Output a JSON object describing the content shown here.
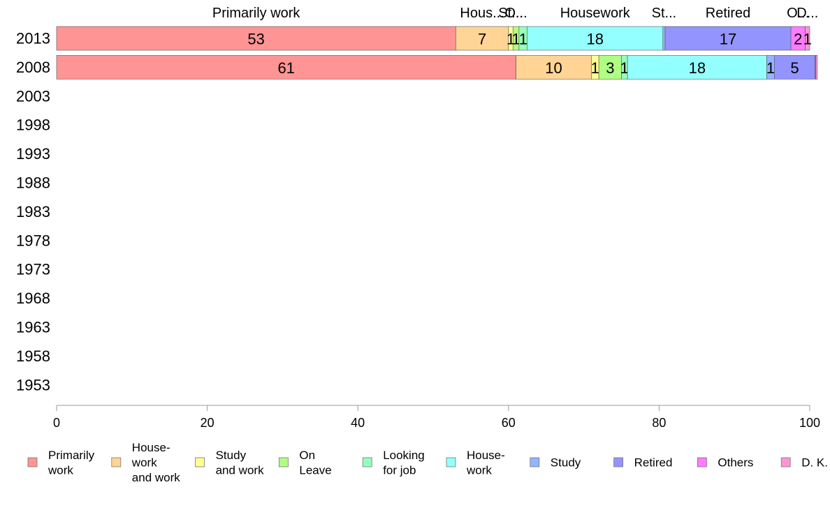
{
  "chart_data": {
    "type": "bar",
    "orientation": "horizontal",
    "stacked": true,
    "title": "",
    "xlabel": "",
    "ylabel": "",
    "xlim": [
      0,
      100
    ],
    "x_ticks": [
      0,
      20,
      40,
      60,
      80,
      100
    ],
    "categories": [
      "2013",
      "2008",
      "2003",
      "1998",
      "1993",
      "1988",
      "1983",
      "1978",
      "1973",
      "1968",
      "1963",
      "1958",
      "1953"
    ],
    "top_labels": [
      {
        "series": 0,
        "text": "Primarily work"
      },
      {
        "series": 1,
        "text": "Hous..."
      },
      {
        "series": 2,
        "text": "St..."
      },
      {
        "series": 3,
        "text": "O..."
      },
      {
        "series": 5,
        "text": "Housework"
      },
      {
        "series": 6,
        "text": "St..."
      },
      {
        "series": 7,
        "text": "Retired"
      },
      {
        "series": 8,
        "text": "O..."
      },
      {
        "series": 9,
        "text": "D..."
      }
    ],
    "series": [
      {
        "name": "Primarily work",
        "color": "#ff9494",
        "values": [
          53,
          61,
          null,
          null,
          null,
          null,
          null,
          null,
          null,
          null,
          null,
          null,
          null
        ],
        "labels": [
          "53",
          "61"
        ]
      },
      {
        "name": "House- work and work",
        "color": "#ffd494",
        "values": [
          7,
          10,
          null,
          null,
          null,
          null,
          null,
          null,
          null,
          null,
          null,
          null,
          null
        ],
        "labels": [
          "7",
          "10"
        ]
      },
      {
        "name": "Study and work",
        "color": "#ffff94",
        "values": [
          0.6,
          1,
          null,
          null,
          null,
          null,
          null,
          null,
          null,
          null,
          null,
          null,
          null
        ],
        "labels": [
          "1",
          "1"
        ]
      },
      {
        "name": "On Leave",
        "color": "#b0ff84",
        "values": [
          0.8,
          3,
          null,
          null,
          null,
          null,
          null,
          null,
          null,
          null,
          null,
          null,
          null
        ],
        "labels": [
          "1",
          "3"
        ]
      },
      {
        "name": "Looking for job",
        "color": "#94ffbe",
        "values": [
          1.1,
          0.8,
          null,
          null,
          null,
          null,
          null,
          null,
          null,
          null,
          null,
          null,
          null
        ],
        "labels": [
          "1",
          "1"
        ]
      },
      {
        "name": "House- work",
        "color": "#94ffff",
        "values": [
          18,
          18.5,
          null,
          null,
          null,
          null,
          null,
          null,
          null,
          null,
          null,
          null,
          null
        ],
        "labels": [
          "18",
          "18"
        ]
      },
      {
        "name": "Study",
        "color": "#94b4ff",
        "values": [
          0.3,
          1,
          null,
          null,
          null,
          null,
          null,
          null,
          null,
          null,
          null,
          null,
          null
        ],
        "labels": [
          "",
          "1"
        ]
      },
      {
        "name": "Retired",
        "color": "#9494ff",
        "values": [
          16.7,
          5.4,
          null,
          null,
          null,
          null,
          null,
          null,
          null,
          null,
          null,
          null,
          null
        ],
        "labels": [
          "17",
          "5"
        ]
      },
      {
        "name": "Others",
        "color": "#ff7bff",
        "values": [
          1.9,
          0.1,
          null,
          null,
          null,
          null,
          null,
          null,
          null,
          null,
          null,
          null,
          null
        ],
        "labels": [
          "2",
          ""
        ]
      },
      {
        "name": "D. K.",
        "color": "#ff94d4",
        "values": [
          0.6,
          0.2,
          null,
          null,
          null,
          null,
          null,
          null,
          null,
          null,
          null,
          null,
          null
        ],
        "labels": [
          "1",
          ""
        ]
      }
    ],
    "legend": {
      "placement": "bottom",
      "items": [
        {
          "lines": [
            "Primarily",
            "work"
          ],
          "color": "#ff9494"
        },
        {
          "lines": [
            "House-",
            "work",
            "and work"
          ],
          "color": "#ffd494"
        },
        {
          "lines": [
            "Study",
            "and work"
          ],
          "color": "#ffff94"
        },
        {
          "lines": [
            "On",
            "Leave"
          ],
          "color": "#b0ff84"
        },
        {
          "lines": [
            "Looking",
            "for job"
          ],
          "color": "#94ffbe"
        },
        {
          "lines": [
            "House-",
            "work"
          ],
          "color": "#94ffff"
        },
        {
          "lines": [
            "Study"
          ],
          "color": "#94b4ff"
        },
        {
          "lines": [
            "Retired"
          ],
          "color": "#9494ff"
        },
        {
          "lines": [
            "Others"
          ],
          "color": "#ff7bff"
        },
        {
          "lines": [
            "D. K."
          ],
          "color": "#ff94d4"
        }
      ]
    },
    "grid": false
  }
}
